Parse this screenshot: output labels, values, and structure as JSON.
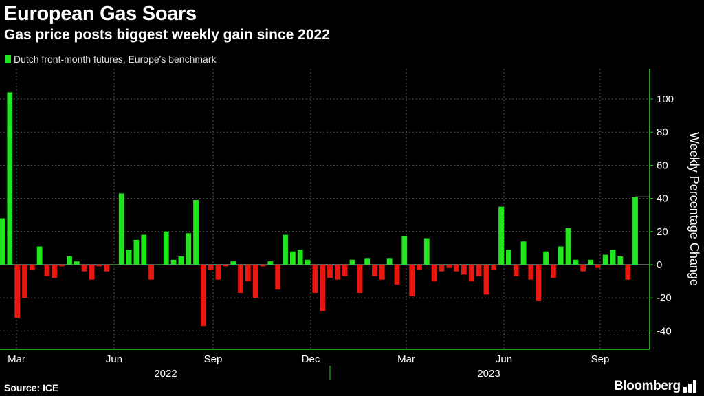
{
  "header": {
    "title": "European Gas Soars",
    "subtitle": "Gas price posts biggest weekly gain since 2022"
  },
  "footer": {
    "source": "Source: ICE",
    "brand": "Bloomberg"
  },
  "colors": {
    "positive": "#21e61e",
    "negative": "#e5170f",
    "background": "#000000",
    "axis": "#2ad22a",
    "grid": "#5a5a5a"
  },
  "chart_data": {
    "type": "bar",
    "title": "European Gas Soars",
    "subtitle": "Gas price posts biggest weekly gain since 2022",
    "series": [
      {
        "name": "Dutch front-month futures, Europe's benchmark",
        "values": [
          28,
          104,
          -32,
          -20,
          -3,
          11,
          -7,
          -8,
          -1,
          5,
          2,
          -4,
          -9,
          -1,
          -4,
          0,
          43,
          9,
          15,
          18,
          -9,
          0,
          20,
          3,
          5,
          19,
          39,
          -37,
          -3,
          -9,
          -1,
          2,
          -17,
          -10,
          -20,
          -1,
          2,
          -15,
          18,
          8,
          9,
          3,
          -17,
          -28,
          -8,
          -9,
          -7,
          3,
          -17,
          4,
          -7,
          -9,
          4,
          -12,
          17,
          -19,
          -3,
          16,
          -10,
          -4,
          -2,
          -4,
          -6,
          -10,
          -7,
          -18,
          -3,
          35,
          9,
          -7,
          14,
          -9,
          -22,
          8,
          -8,
          11,
          22,
          3,
          -4,
          3,
          -2,
          6,
          9,
          5,
          -9,
          41
        ]
      }
    ],
    "x_axis": {
      "month_ticks": [
        "Mar",
        "Jun",
        "Sep",
        "Dec",
        "Mar",
        "Jun",
        "Sep"
      ],
      "year_labels": [
        "2022",
        "2023"
      ]
    },
    "y_axis": {
      "label": "Weekly Percentage Change",
      "ticks": [
        100,
        80,
        60,
        40,
        20,
        0,
        -20,
        -40
      ],
      "ylim": [
        -50,
        115
      ],
      "position": "right"
    },
    "last_value_reference": 41,
    "grid": true,
    "legend": "top-left"
  }
}
